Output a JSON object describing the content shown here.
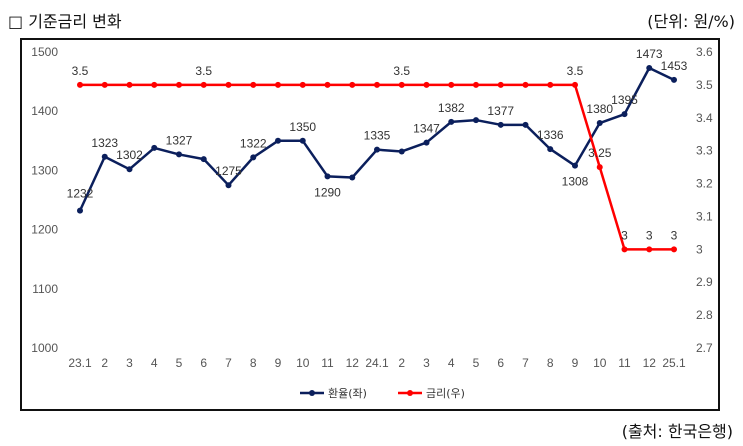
{
  "header": {
    "title": "□ 기준금리 변화",
    "unit": "(단위: 원/%)"
  },
  "footer": {
    "source": "(출처: 한국은행)"
  },
  "chart_data": {
    "type": "line",
    "categories": [
      "23.1",
      "2",
      "3",
      "4",
      "5",
      "6",
      "7",
      "8",
      "9",
      "10",
      "11",
      "12",
      "24.1",
      "2",
      "3",
      "4",
      "5",
      "6",
      "7",
      "8",
      "9",
      "10",
      "11",
      "12",
      "25.1"
    ],
    "series": [
      {
        "name": "환율(좌)",
        "axis": "left",
        "color": "#0b1f5c",
        "values": [
          1232,
          1323,
          1302,
          1338,
          1327,
          1319,
          1275,
          1322,
          1350,
          1350,
          1290,
          1288,
          1335,
          1332,
          1347,
          1382,
          1385,
          1377,
          1377,
          1336,
          1308,
          1380,
          1395,
          1473,
          1453
        ],
        "labels": [
          "1232",
          "1323",
          "1302",
          "",
          "1327",
          "",
          "1275",
          "1322",
          "",
          "1350",
          "1290",
          "",
          "1335",
          "",
          "1347",
          "1382",
          "",
          "1377",
          "",
          "1336",
          "1308",
          "1380",
          "1395",
          "1473",
          "1453"
        ]
      },
      {
        "name": "금리(우)",
        "axis": "right",
        "color": "#ff0000",
        "values": [
          3.5,
          3.5,
          3.5,
          3.5,
          3.5,
          3.5,
          3.5,
          3.5,
          3.5,
          3.5,
          3.5,
          3.5,
          3.5,
          3.5,
          3.5,
          3.5,
          3.5,
          3.5,
          3.5,
          3.5,
          3.5,
          3.25,
          3,
          3,
          3
        ],
        "labels": [
          "3.5",
          "",
          "",
          "",
          "",
          "3.5",
          "",
          "",
          "",
          "",
          "",
          "",
          "",
          "3.5",
          "",
          "",
          "",
          "",
          "",
          "",
          "3.5",
          "3.25",
          "3",
          "3",
          "3"
        ]
      }
    ],
    "y_left": {
      "min": 1000,
      "max": 1500,
      "ticks": [
        "1000",
        "1100",
        "1200",
        "1300",
        "1400",
        "1500"
      ]
    },
    "y_right": {
      "min": 2.7,
      "max": 3.6,
      "ticks": [
        "2.7",
        "2.8",
        "2.9",
        "3",
        "3.1",
        "3.2",
        "3.3",
        "3.4",
        "3.5",
        "3.6"
      ]
    },
    "grid": false,
    "legend": "bottom"
  }
}
